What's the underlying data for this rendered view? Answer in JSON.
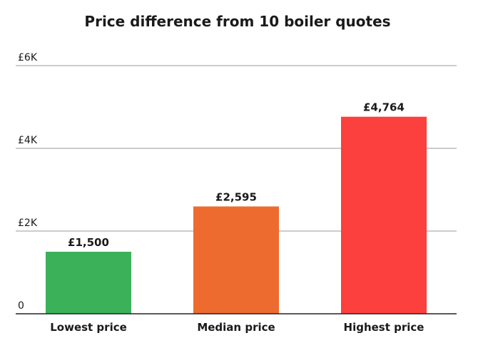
{
  "chart_data": {
    "type": "bar",
    "title": "Price difference from 10 boiler quotes",
    "xlabel": "",
    "ylabel": "",
    "categories": [
      "Lowest price",
      "Median price",
      "Highest price"
    ],
    "values": [
      1500,
      2595,
      4764
    ],
    "data_labels": [
      "£1,500",
      "£2,595",
      "£4,764"
    ],
    "bar_colors": [
      "#3bb25a",
      "#ee6b2f",
      "#fc403d"
    ],
    "ylim": [
      0,
      6000
    ],
    "yticks": [
      0,
      2000,
      4000,
      6000
    ],
    "ytick_labels": [
      "0",
      "£2K",
      "£4K",
      "£6K"
    ],
    "grid": true,
    "legend": "none"
  }
}
